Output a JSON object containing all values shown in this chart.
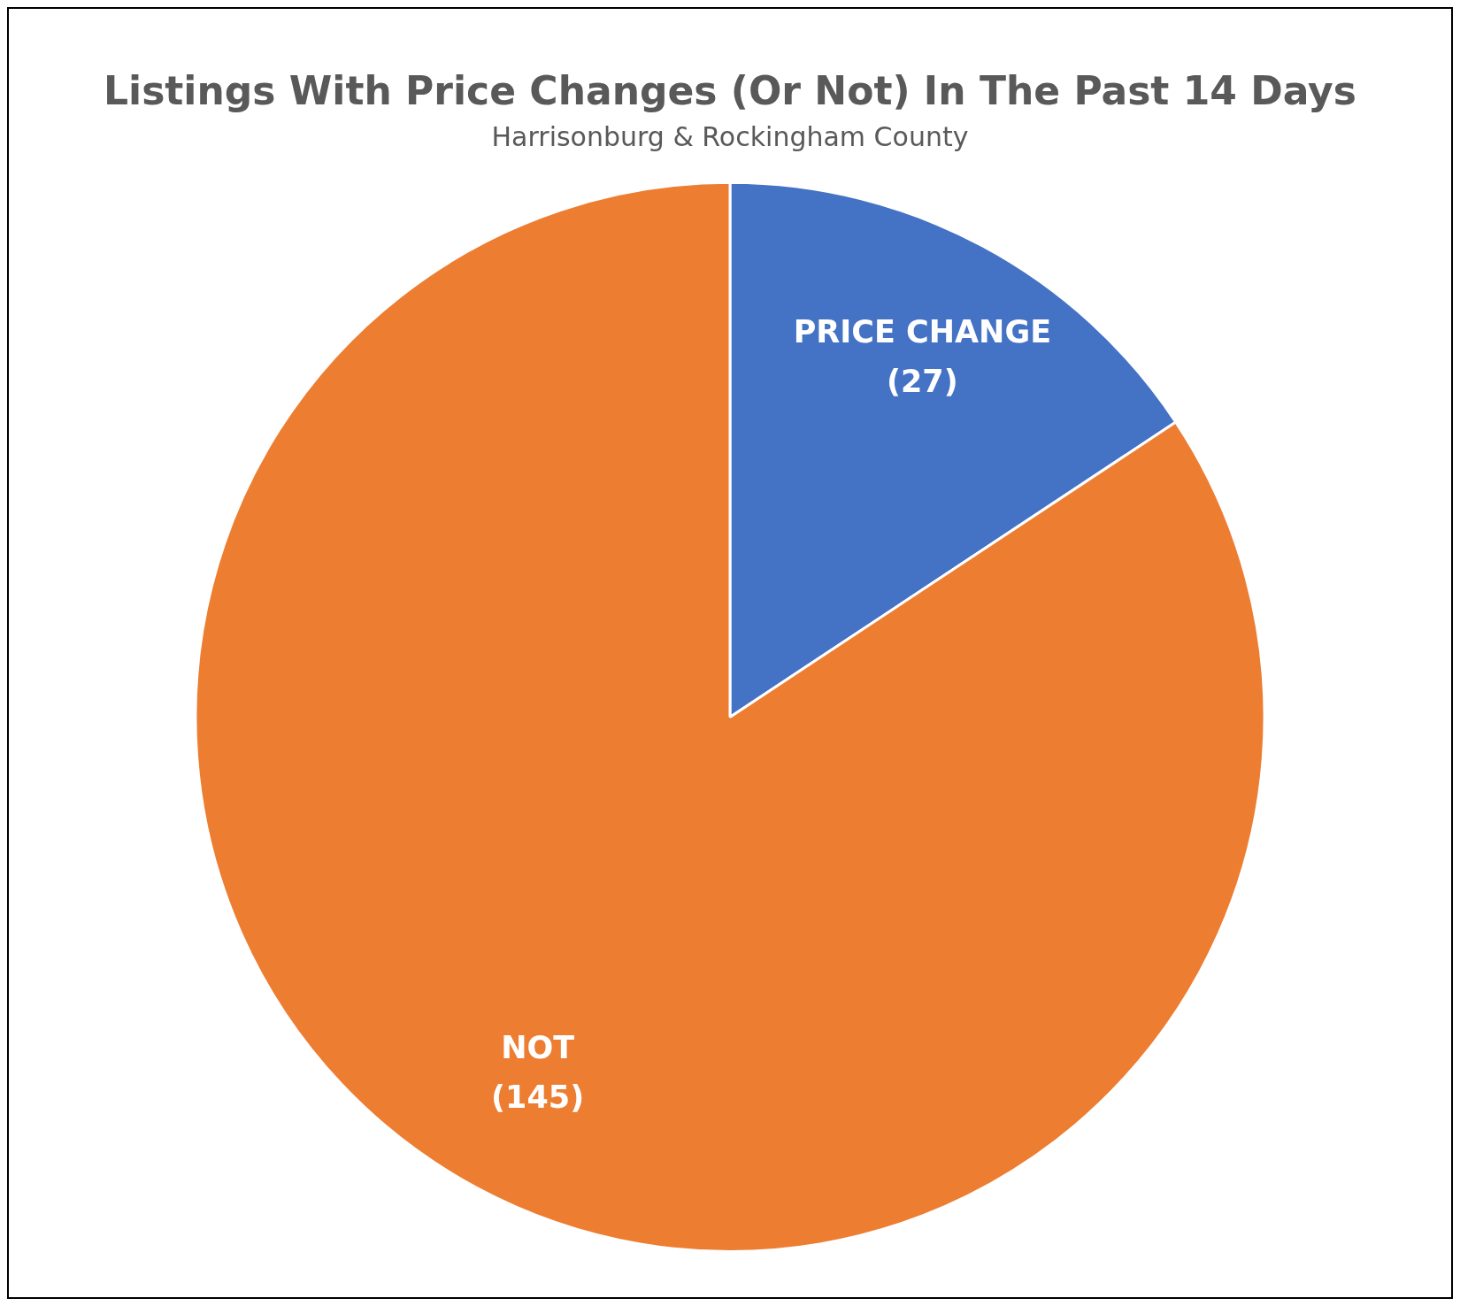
{
  "chart_data": {
    "type": "pie",
    "title": "Listings With Price Changes (Or Not) In The Past 14 Days",
    "subtitle": "Harrisonburg & Rockingham County",
    "categories": [
      "PRICE CHANGE",
      "NOT"
    ],
    "values": [
      27,
      145
    ],
    "colors": [
      "#4472c4",
      "#ed7d31"
    ],
    "value_labels": [
      "(27)",
      "(145)"
    ],
    "legend": false
  }
}
